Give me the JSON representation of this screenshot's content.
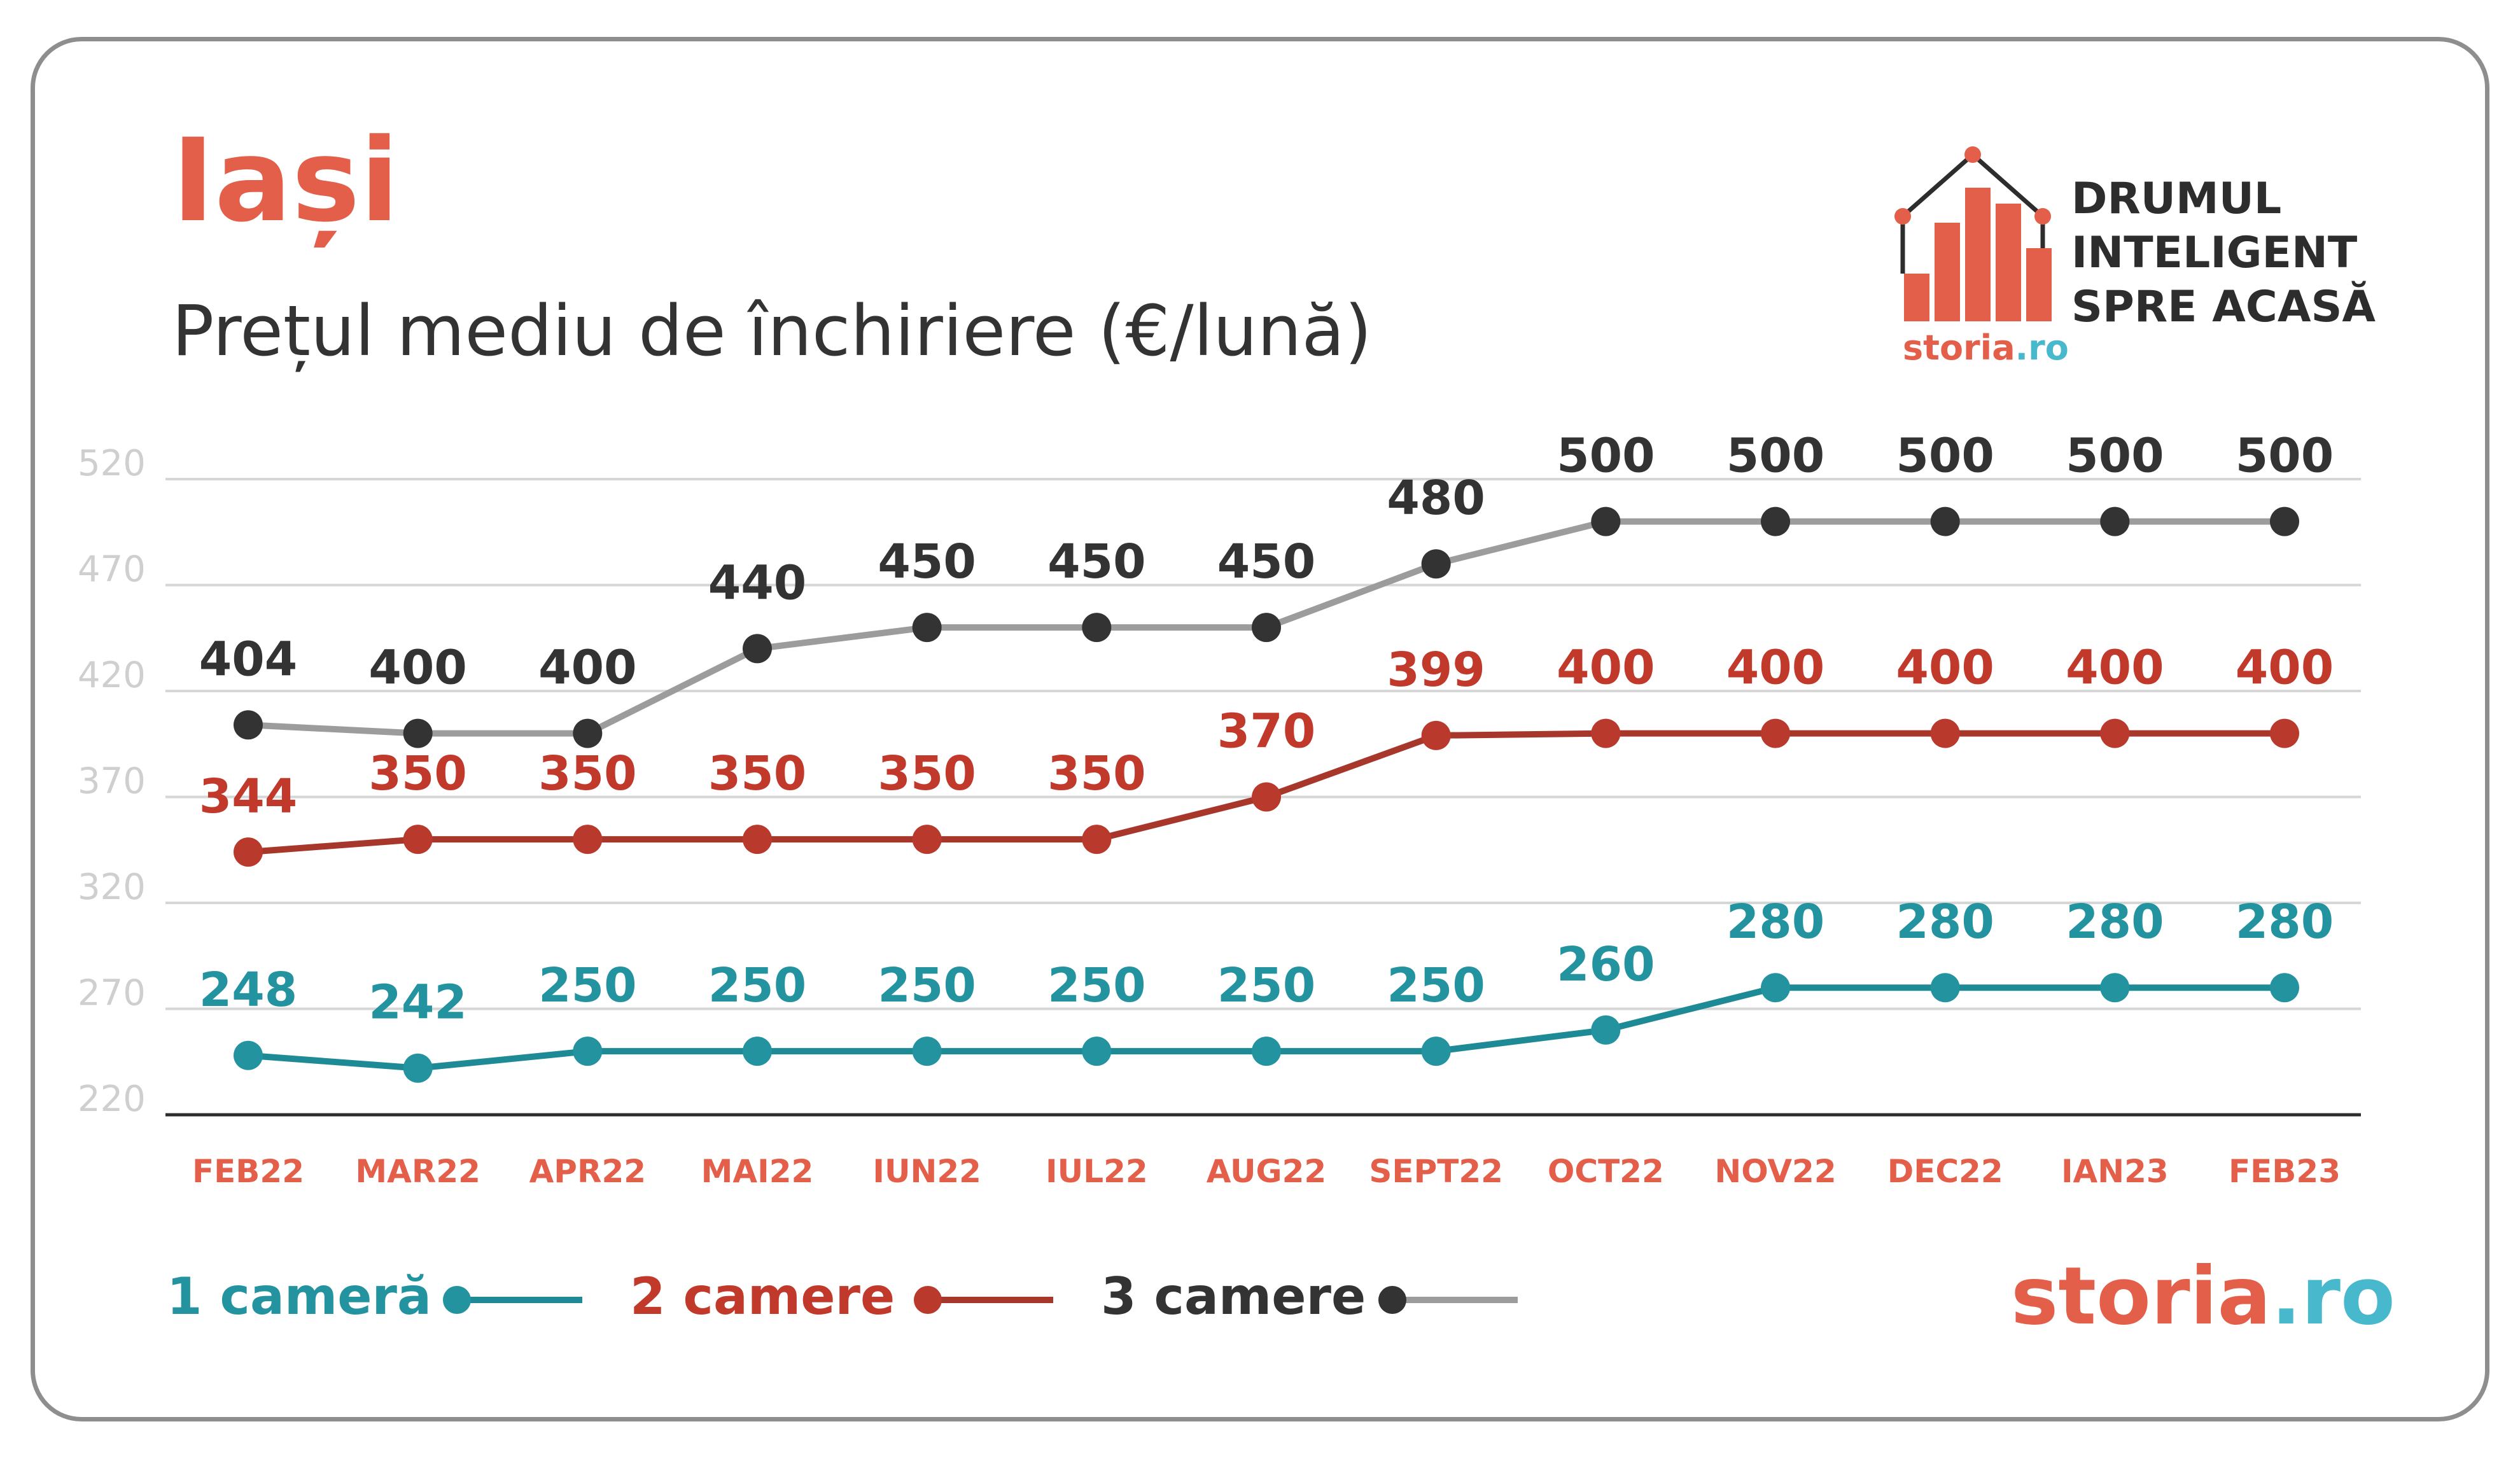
{
  "header": {
    "title": "Iași",
    "subtitle": "Prețul mediu de închiriere (€/lună)"
  },
  "brand": {
    "tagline": [
      "DRUMUL",
      "INTELIGENT",
      "SPRE ACASĂ"
    ],
    "logo_small": {
      "left": "storia",
      "right": ".ro"
    },
    "logo_footer": {
      "left": "storia",
      "right": ".ro"
    },
    "icon": "house-bar-chart-icon",
    "colors": {
      "orange": "#e35f4a",
      "teal": "#48b8cc",
      "dark": "#2d2d2d"
    }
  },
  "chart_data": {
    "type": "line",
    "title": "Iași",
    "subtitle": "Prețul mediu de închiriere (€/lună)",
    "categories": [
      "FEB22",
      "MAR22",
      "APR22",
      "MAI22",
      "IUN22",
      "IUL22",
      "AUG22",
      "SEPT22",
      "OCT22",
      "NOV22",
      "DEC22",
      "IAN23",
      "FEB23"
    ],
    "ylim": [
      220,
      520
    ],
    "yticks": [
      220,
      270,
      320,
      370,
      420,
      470,
      520
    ],
    "grid": true,
    "legend_position": "bottom-left",
    "series": [
      {
        "name": "1 cameră",
        "values": [
          248,
          242,
          250,
          250,
          250,
          250,
          250,
          250,
          260,
          280,
          280,
          280,
          280
        ],
        "line_color": "#1d8a95",
        "marker_color": "#2393a0",
        "label_color": "#2393a0"
      },
      {
        "name": "2 camere",
        "values": [
          344,
          350,
          350,
          350,
          350,
          350,
          370,
          399,
          400,
          400,
          400,
          400,
          400
        ],
        "line_color": "#a8372b",
        "marker_color": "#b9392c",
        "label_color": "#c0392b"
      },
      {
        "name": "3 camere",
        "values": [
          404,
          400,
          400,
          440,
          450,
          450,
          450,
          480,
          500,
          500,
          500,
          500,
          500
        ],
        "line_color": "#9c9c9c",
        "marker_color": "#333333",
        "label_color": "#333333"
      }
    ]
  }
}
